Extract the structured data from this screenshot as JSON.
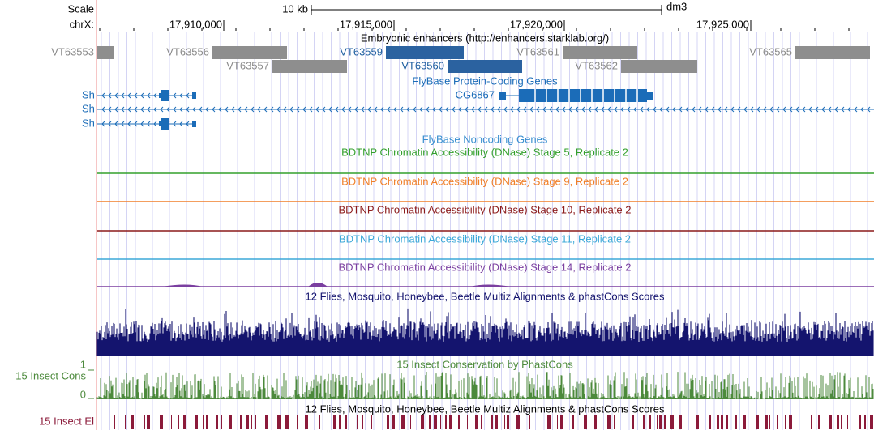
{
  "header": {
    "scale": "Scale",
    "chrom": "chrX:",
    "scale_bar": "10 kb",
    "assembly": "dm3"
  },
  "ruler": [
    "17,910,000",
    "17,915,000",
    "17,920,000",
    "17,925,000"
  ],
  "enhancers": {
    "title": "Embryonic enhancers (http://enhancers.starklab.org/)",
    "features": [
      "VT63553",
      "VT63556",
      "VT63557",
      "VT63559",
      "VT63560",
      "VT63561",
      "VT63562",
      "VT63565"
    ]
  },
  "genes": {
    "title": "FlyBase Protein-Coding Genes",
    "left_labels": [
      "Sh",
      "Sh",
      "Sh"
    ],
    "feature": "CG6867"
  },
  "noncoding": {
    "title": "FlyBase Noncoding Genes"
  },
  "dnase": [
    "BDTNP Chromatin Accessibility (DNase) Stage 5, Replicate 2",
    "BDTNP Chromatin Accessibility (DNase) Stage 9, Replicate 2",
    "BDTNP Chromatin Accessibility (DNase) Stage 10, Replicate 2",
    "BDTNP Chromatin Accessibility (DNase) Stage 11, Replicate 2",
    "BDTNP Chromatin Accessibility (DNase) Stage 14, Replicate 2"
  ],
  "multiz": {
    "title": "12 Flies, Mosquito, Honeybee, Beetle Multiz Alignments & phastCons Scores"
  },
  "phastcons": {
    "title": "15 Insect Conservation by PhastCons",
    "label": "15 Insect Cons",
    "max": 1,
    "min": 0
  },
  "elements": {
    "title": "12 Flies, Mosquito, Honeybee, Beetle Multiz Alignments & phastCons Scores",
    "label": "15 Insect El"
  }
}
